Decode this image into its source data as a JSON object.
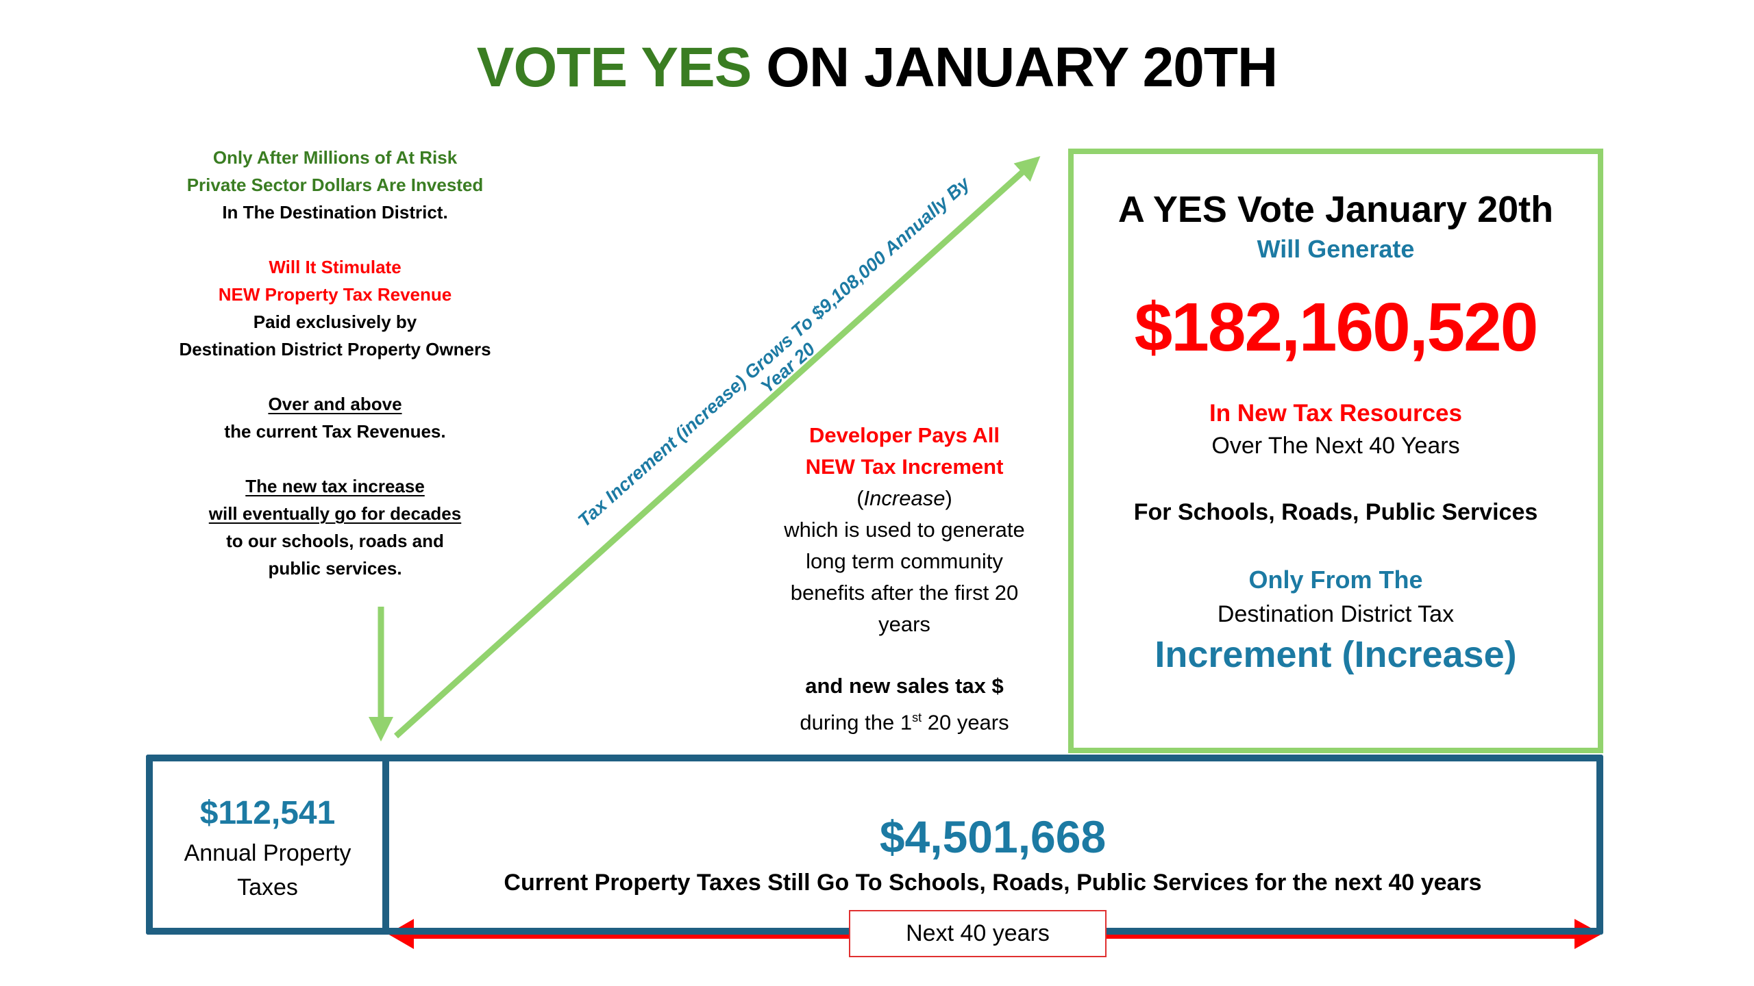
{
  "title": {
    "green_part": "VOTE YES",
    "black_part": "ON JANUARY 20TH"
  },
  "left_column": {
    "line1": "Only After Millions of At Risk",
    "line2": "Private Sector Dollars Are Invested",
    "line3": "In The Destination District.",
    "line4": "Will It Stimulate",
    "line5": "NEW Property Tax Revenue",
    "line6": "Paid exclusively by",
    "line7": "Destination District Property Owners",
    "line8": "Over and above",
    "line9": "the current Tax Revenues.",
    "line10": "The new tax increase",
    "line11": "will eventually go for decades",
    "line12": "to our schools, roads and",
    "line13": "public services."
  },
  "diagonal_label": "Tax Increment (increase) Grows To $9,108,000 Annually By Year 20",
  "developer_column": {
    "line1": "Developer Pays All",
    "line2": "NEW Tax Increment",
    "line3_open": "(",
    "line3_italic": "Increase",
    "line3_close": ")",
    "line4": "which is used to generate",
    "line5": "long term community",
    "line6": "benefits after the first 20",
    "line7": "years",
    "line8": "and new sales tax $",
    "line9_pre": "during the 1",
    "line9_sup": "st",
    "line9_post": " 20 years"
  },
  "yes_box": {
    "heading": "A YES Vote January 20th",
    "subheading": "Will Generate",
    "amount": "$182,160,520",
    "resources": "In New Tax Resources",
    "period": "Over The Next 40 Years",
    "uses": "For Schools, Roads, Public Services",
    "only_from": "Only From The",
    "district": "Destination District Tax",
    "increment": "Increment (Increase)"
  },
  "annual_box": {
    "amount": "$112,541",
    "label_line1": "Annual Property",
    "label_line2": "Taxes"
  },
  "current_box": {
    "amount": "$4,501,668",
    "description": "Current Property Taxes Still Go To Schools, Roads, Public Services for the next 40 years"
  },
  "timeline_label": "Next 40 years",
  "colors": {
    "green_text": "#3a7d22",
    "arrow_green": "#92d36e",
    "red": "#ff0000",
    "blue_text": "#1c7aa3",
    "box_border": "#1f5f82"
  }
}
